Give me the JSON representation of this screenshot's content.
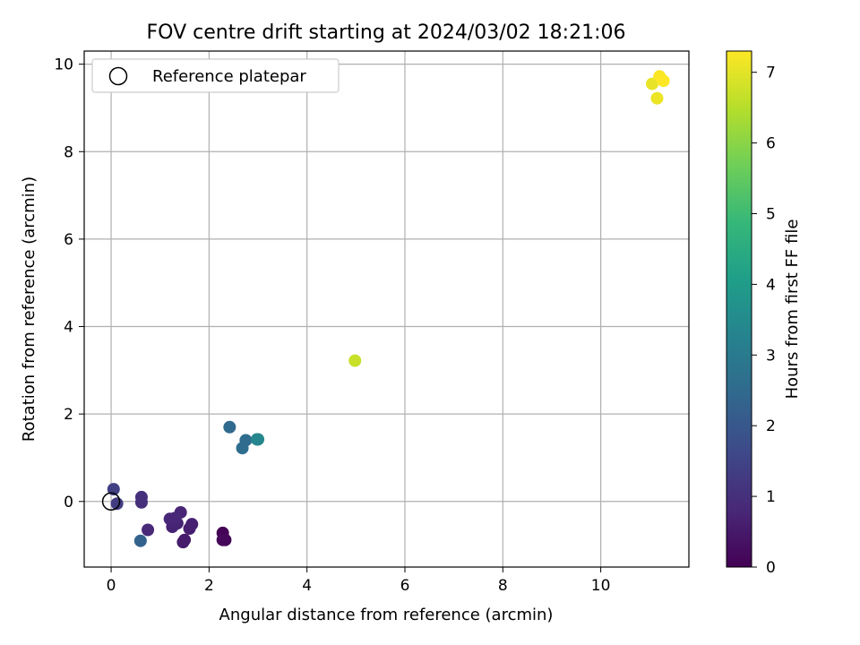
{
  "chart_data": {
    "type": "scatter",
    "title": "FOV centre drift starting at 2024/03/02 18:21:06",
    "xlabel": "Angular distance from reference (arcmin)",
    "ylabel": "Rotation from reference (arcmin)",
    "xlim": [
      -0.55,
      11.8
    ],
    "ylim": [
      -1.5,
      10.3
    ],
    "xticks": [
      0,
      2,
      4,
      6,
      8,
      10
    ],
    "yticks": [
      0,
      2,
      4,
      6,
      8,
      10
    ],
    "grid": true,
    "legend": {
      "placement": "top-left",
      "entries": [
        {
          "label": "Reference platepar",
          "marker": "hollow-circle"
        }
      ]
    },
    "reference_point": {
      "x": 0,
      "y": 0
    },
    "colorbar": {
      "label": "Hours from first FF file",
      "colormap": "viridis",
      "range": [
        0,
        7.3
      ],
      "ticks": [
        0,
        1,
        2,
        3,
        4,
        5,
        6,
        7
      ]
    },
    "points": [
      {
        "x": 2.28,
        "y": -0.72,
        "t": 0.05
      },
      {
        "x": 2.33,
        "y": -0.88,
        "t": 0.1
      },
      {
        "x": 2.28,
        "y": -0.88,
        "t": 0.15
      },
      {
        "x": 1.5,
        "y": -0.88,
        "t": 0.5
      },
      {
        "x": 1.47,
        "y": -0.93,
        "t": 0.55
      },
      {
        "x": 1.6,
        "y": -0.62,
        "t": 0.6
      },
      {
        "x": 1.65,
        "y": -0.52,
        "t": 0.65
      },
      {
        "x": 1.35,
        "y": -0.5,
        "t": 0.7
      },
      {
        "x": 1.25,
        "y": -0.58,
        "t": 0.7
      },
      {
        "x": 1.42,
        "y": -0.25,
        "t": 0.75
      },
      {
        "x": 1.3,
        "y": -0.38,
        "t": 0.78
      },
      {
        "x": 1.2,
        "y": -0.4,
        "t": 0.8
      },
      {
        "x": 0.75,
        "y": -0.65,
        "t": 0.85
      },
      {
        "x": 0.62,
        "y": -0.02,
        "t": 0.95
      },
      {
        "x": 0.62,
        "y": 0.1,
        "t": 1.0
      },
      {
        "x": 0.12,
        "y": -0.05,
        "t": 1.3
      },
      {
        "x": 0.05,
        "y": 0.28,
        "t": 1.4
      },
      {
        "x": 0.6,
        "y": -0.9,
        "t": 2.3
      },
      {
        "x": 2.42,
        "y": 1.7,
        "t": 2.5
      },
      {
        "x": 2.75,
        "y": 1.4,
        "t": 2.55
      },
      {
        "x": 2.68,
        "y": 1.22,
        "t": 2.6
      },
      {
        "x": 2.98,
        "y": 1.42,
        "t": 3.3
      },
      {
        "x": 3.0,
        "y": 1.42,
        "t": 3.4
      },
      {
        "x": 4.98,
        "y": 3.22,
        "t": 6.7
      },
      {
        "x": 11.05,
        "y": 9.55,
        "t": 7.05
      },
      {
        "x": 11.15,
        "y": 9.22,
        "t": 7.1
      },
      {
        "x": 11.2,
        "y": 9.72,
        "t": 7.25
      },
      {
        "x": 11.28,
        "y": 9.62,
        "t": 7.3
      }
    ]
  }
}
